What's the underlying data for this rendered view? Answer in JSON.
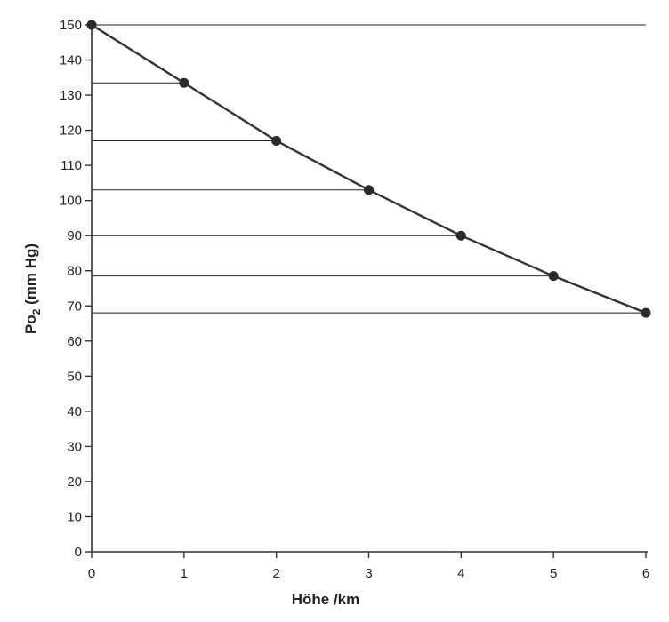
{
  "chart_data": {
    "type": "line",
    "title": "",
    "xlabel": "Höhe /km",
    "ylabel": "Po",
    "ylabel_sub": "2",
    "ylabel_unit": " (mm Hg)",
    "xlim": [
      0,
      6
    ],
    "ylim": [
      0,
      150
    ],
    "x_ticks": [
      0,
      1,
      2,
      3,
      4,
      5,
      6
    ],
    "y_ticks": [
      0,
      10,
      20,
      30,
      40,
      50,
      60,
      70,
      80,
      90,
      100,
      110,
      120,
      130,
      140,
      150
    ],
    "grid": false,
    "legend": "none",
    "series": [
      {
        "x": [
          0,
          1,
          2,
          3,
          4,
          5,
          6
        ],
        "y": [
          150,
          133.5,
          117,
          103,
          90,
          78.5,
          68
        ]
      }
    ],
    "colors": {
      "line": "#333333",
      "marker": "#2a2a2a",
      "axis": "#333333",
      "guides": "#222222"
    }
  }
}
